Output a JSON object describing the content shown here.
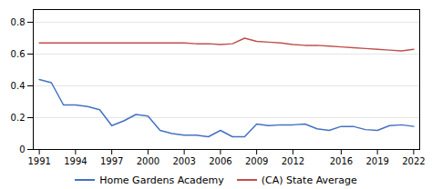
{
  "chart_data": {
    "type": "line",
    "x": [
      1991,
      1992,
      1993,
      1994,
      1995,
      1996,
      1997,
      1998,
      1999,
      2000,
      2001,
      2002,
      2003,
      2004,
      2005,
      2006,
      2007,
      2008,
      2009,
      2010,
      2011,
      2012,
      2013,
      2014,
      2015,
      2016,
      2017,
      2018,
      2019,
      2020,
      2021,
      2022
    ],
    "series": [
      {
        "name": "Home Gardens Academy",
        "color": "#4472c4",
        "values": [
          0.44,
          0.42,
          0.28,
          0.28,
          0.27,
          0.25,
          0.15,
          0.18,
          0.22,
          0.21,
          0.12,
          0.1,
          0.09,
          0.09,
          0.08,
          0.12,
          0.08,
          0.08,
          0.16,
          0.15,
          0.155,
          0.155,
          0.16,
          0.13,
          0.12,
          0.145,
          0.145,
          0.125,
          0.12,
          0.15,
          0.155,
          0.145
        ]
      },
      {
        "name": "(CA) State Average",
        "color": "#c0504d",
        "values": [
          0.67,
          0.67,
          0.67,
          0.67,
          0.67,
          0.67,
          0.67,
          0.67,
          0.67,
          0.67,
          0.67,
          0.67,
          0.67,
          0.665,
          0.665,
          0.66,
          0.665,
          0.7,
          0.68,
          0.675,
          0.67,
          0.66,
          0.655,
          0.655,
          0.65,
          0.645,
          0.64,
          0.635,
          0.63,
          0.625,
          0.62,
          0.63
        ]
      }
    ],
    "xlim": [
      1990.5,
      2022.5
    ],
    "ylim": [
      0,
      0.88
    ],
    "xticks": [
      1991,
      1994,
      1997,
      2000,
      2003,
      2006,
      2009,
      2012,
      2016,
      2019,
      2022
    ],
    "yticks": [
      0,
      0.2,
      0.4,
      0.6,
      0.8
    ],
    "grid": true,
    "legend": "bottom"
  }
}
